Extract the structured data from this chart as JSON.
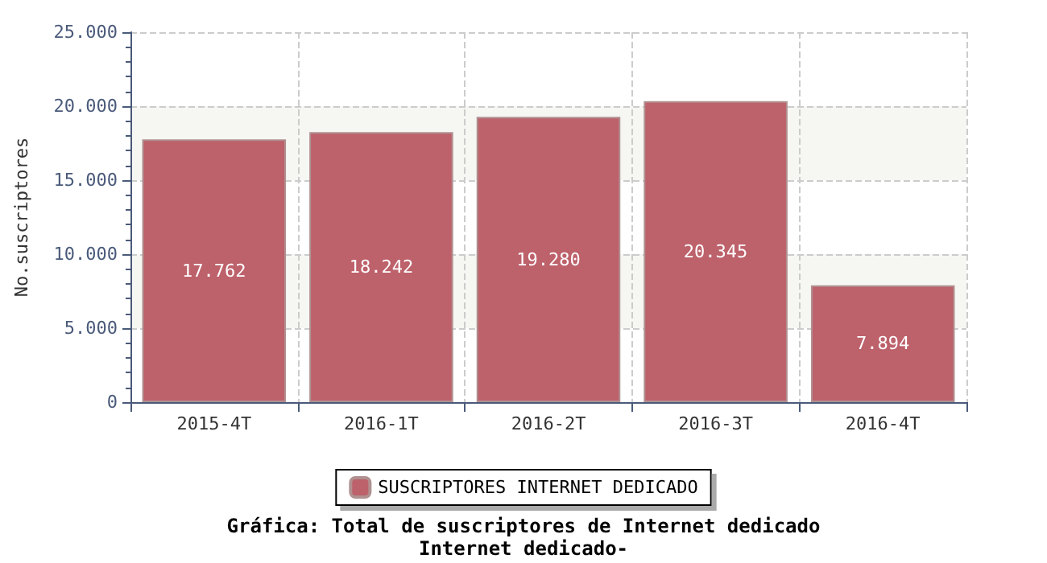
{
  "chart_data": {
    "type": "bar",
    "title": "Gráfica: Total de suscriptores de Internet dedicado",
    "subtitle": "Internet dedicado-",
    "ylabel": "No.suscriptores",
    "categories": [
      "2015-4T",
      "2016-1T",
      "2016-2T",
      "2016-3T",
      "2016-4T"
    ],
    "series": [
      {
        "name": "SUSCRIPTORES INTERNET DEDICADO",
        "color": "#bd616b",
        "values": [
          17762,
          18242,
          19280,
          20345,
          7894
        ],
        "value_labels": [
          "17.762",
          "18.242",
          "19.280",
          "20.345",
          "7.894"
        ]
      }
    ],
    "ylim": [
      0,
      25000
    ],
    "yticks": [
      {
        "value": 0,
        "label": "0"
      },
      {
        "value": 5000,
        "label": "5.000"
      },
      {
        "value": 10000,
        "label": "10.000"
      },
      {
        "value": 15000,
        "label": "15.000"
      },
      {
        "value": 20000,
        "label": "20.000"
      },
      {
        "value": 25000,
        "label": "25.000"
      }
    ],
    "grid": true,
    "legend": "bottom"
  }
}
